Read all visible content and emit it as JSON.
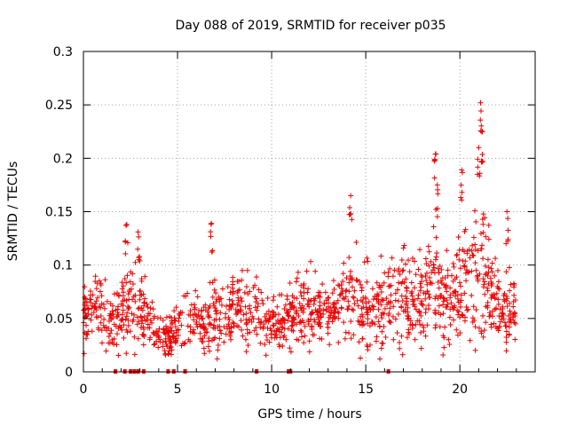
{
  "chart_data": {
    "type": "scatter",
    "title": "Day 088 of 2019, SRMTID for receiver p035",
    "xlabel": "GPS time / hours",
    "ylabel": "SRMTID / TECUs",
    "xlim": [
      0,
      24
    ],
    "ylim": [
      0,
      0.3
    ],
    "x_ticks": [
      0,
      5,
      10,
      15,
      20
    ],
    "y_ticks": [
      0,
      0.05,
      0.1,
      0.15,
      0.2,
      0.25,
      0.3
    ],
    "x_tick_labels": [
      "0",
      "5",
      "10",
      "15",
      "20"
    ],
    "y_tick_labels": [
      "0",
      "0.05",
      "0.1",
      "0.15",
      "0.2",
      "0.25",
      "0.3"
    ],
    "grid": true,
    "marker": "+",
    "color": "#ee0000",
    "envelope": {
      "x": [
        0,
        0.5,
        1,
        1.5,
        2,
        2.5,
        3,
        3.5,
        4,
        4.5,
        5,
        5.5,
        6,
        6.5,
        7,
        7.5,
        8,
        8.5,
        9,
        9.5,
        10,
        10.5,
        11,
        11.5,
        12,
        12.5,
        13,
        13.5,
        14,
        14.5,
        15,
        15.5,
        16,
        16.5,
        17,
        17.5,
        18,
        18.5,
        19,
        19.5,
        20,
        20.5,
        21,
        21.5,
        22,
        22.5,
        23
      ],
      "median": [
        0.05,
        0.065,
        0.06,
        0.045,
        0.05,
        0.07,
        0.06,
        0.05,
        0.035,
        0.03,
        0.055,
        0.05,
        0.045,
        0.05,
        0.06,
        0.045,
        0.06,
        0.055,
        0.05,
        0.05,
        0.045,
        0.045,
        0.05,
        0.06,
        0.06,
        0.055,
        0.055,
        0.06,
        0.07,
        0.065,
        0.06,
        0.05,
        0.055,
        0.06,
        0.07,
        0.07,
        0.065,
        0.075,
        0.07,
        0.065,
        0.08,
        0.08,
        0.09,
        0.08,
        0.06,
        0.055,
        0.055
      ],
      "spread": [
        0.02,
        0.025,
        0.025,
        0.02,
        0.025,
        0.03,
        0.03,
        0.02,
        0.015,
        0.015,
        0.02,
        0.02,
        0.02,
        0.025,
        0.03,
        0.02,
        0.025,
        0.025,
        0.02,
        0.02,
        0.02,
        0.02,
        0.02,
        0.025,
        0.025,
        0.02,
        0.02,
        0.025,
        0.035,
        0.03,
        0.025,
        0.025,
        0.03,
        0.03,
        0.035,
        0.035,
        0.03,
        0.035,
        0.035,
        0.03,
        0.04,
        0.04,
        0.05,
        0.04,
        0.025,
        0.025,
        0.02
      ]
    },
    "estimated_point_count": 1400,
    "peaks": [
      {
        "x": 2.3,
        "y": 0.138
      },
      {
        "x": 2.9,
        "y": 0.131
      },
      {
        "x": 6.8,
        "y": 0.139
      },
      {
        "x": 14.2,
        "y": 0.165
      },
      {
        "x": 18.7,
        "y": 0.204
      },
      {
        "x": 18.8,
        "y": 0.175
      },
      {
        "x": 20.1,
        "y": 0.189
      },
      {
        "x": 21.1,
        "y": 0.252
      },
      {
        "x": 21.2,
        "y": 0.225
      },
      {
        "x": 21.0,
        "y": 0.21
      },
      {
        "x": 22.5,
        "y": 0.15
      }
    ],
    "zero_markers_x": [
      1.7,
      2.2,
      2.5,
      2.7,
      2.9,
      3.2,
      4.5,
      4.8,
      5.4,
      9.2,
      10.9,
      11.0,
      16.2
    ]
  }
}
